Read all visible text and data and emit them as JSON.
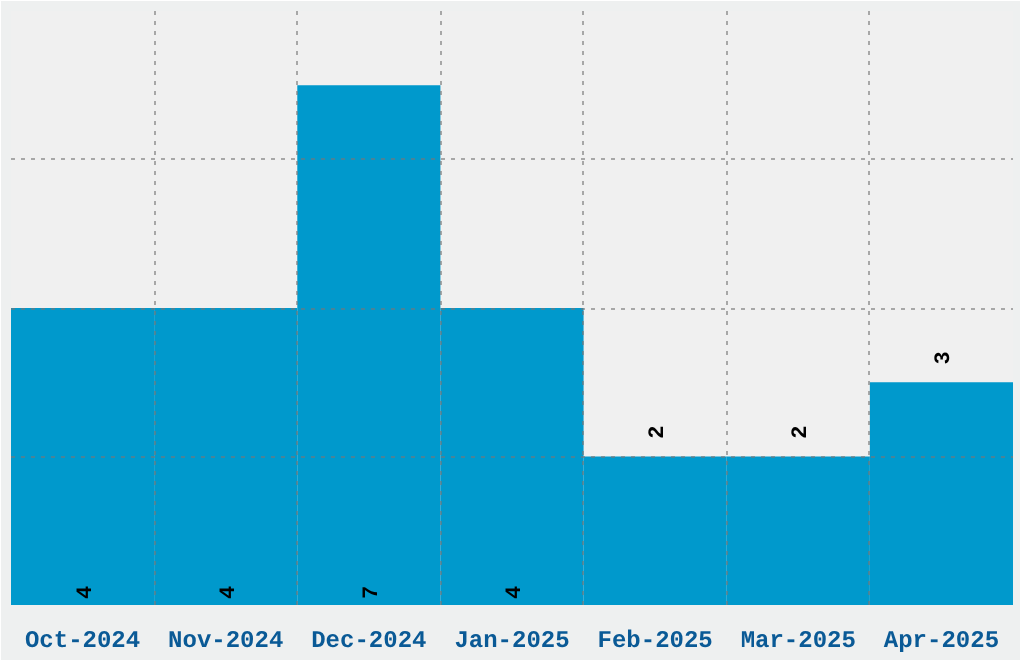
{
  "chart_data": {
    "type": "bar",
    "categories": [
      "Oct-2024",
      "Nov-2024",
      "Dec-2024",
      "Jan-2025",
      "Feb-2025",
      "Mar-2025",
      "Apr-2025"
    ],
    "values": [
      4,
      4,
      7,
      4,
      2,
      2,
      3
    ],
    "color": "#0099cc",
    "ylim": [
      0,
      8
    ],
    "yticks": [
      {
        "value": 2,
        "label": null
      },
      {
        "value": 4,
        "label": null
      },
      {
        "value": 6,
        "label": null
      }
    ],
    "tick_labels": "x",
    "grid": true,
    "data_labels": true
  }
}
